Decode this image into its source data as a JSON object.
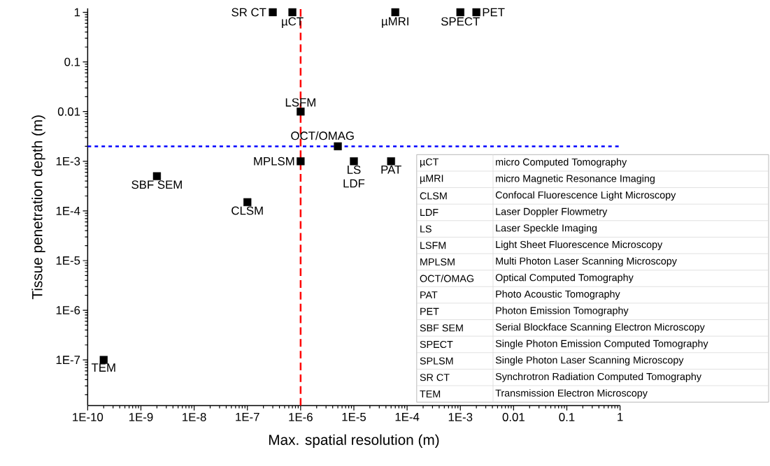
{
  "chart_data": {
    "type": "scatter",
    "xlabel": "Max. spatial resolution (m)",
    "ylabel": "Tissue penetration depth (m)",
    "log": "xy",
    "marker": "square",
    "xlim": [
      1e-10,
      1
    ],
    "ylim": [
      1.2e-08,
      1.2
    ],
    "xticks": [
      {
        "value": 1e-10,
        "label": "1E-10"
      },
      {
        "value": 1e-09,
        "label": "1E-9"
      },
      {
        "value": 1e-08,
        "label": "1E-8"
      },
      {
        "value": 1e-07,
        "label": "1E-7"
      },
      {
        "value": 1e-06,
        "label": "1E-6"
      },
      {
        "value": 1e-05,
        "label": "1E-5"
      },
      {
        "value": 0.0001,
        "label": "1E-4"
      },
      {
        "value": 0.001,
        "label": "1E-3"
      },
      0.01,
      0.1,
      1
    ],
    "yticks": [
      {
        "value": 1e-07,
        "label": "1E-7"
      },
      {
        "value": 1e-06,
        "label": "1E-6"
      },
      {
        "value": 1e-05,
        "label": "1E-5"
      },
      {
        "value": 0.0001,
        "label": "1E-4"
      },
      {
        "value": 0.001,
        "label": "1E-3"
      },
      0.01,
      0.1,
      1
    ],
    "series": [
      {
        "color": "#000000",
        "x": [
          3e-07,
          7e-07,
          6e-05,
          0.001,
          0.002,
          1e-06,
          5e-06,
          1e-06,
          1e-05,
          5e-05,
          2e-09,
          1e-07,
          2e-10
        ],
        "values": [
          1,
          1,
          1,
          1,
          1,
          0.01,
          0.002,
          0.001,
          0.001,
          0.001,
          0.0005,
          0.00015,
          1e-07
        ]
      }
    ],
    "ref_lines": [
      {
        "axis": "x",
        "value": 1e-06,
        "color": "#ff0000",
        "line_style": "dashed"
      },
      {
        "axis": "y",
        "value": 0.002,
        "color": "#0000ff",
        "line_style": "dotted"
      }
    ],
    "annotations": [
      {
        "text": "SR CT",
        "x": 3e-07,
        "y": 1
      },
      {
        "text": "µCT",
        "x": 7e-07,
        "y": 1
      },
      {
        "text": "µMRI",
        "x": 6e-05,
        "y": 1
      },
      {
        "text": "SPECT",
        "x": 0.001,
        "y": 1
      },
      {
        "text": "PET",
        "x": 0.002,
        "y": 1
      },
      {
        "text": "LSFM",
        "x": 1e-06,
        "y": 0.01
      },
      {
        "text": "OCT/OMAG",
        "x": 5e-06,
        "y": 0.002
      },
      {
        "text": "MPLSM",
        "x": 1e-06,
        "y": 0.001
      },
      {
        "text": "LS",
        "x": 1e-05,
        "y": 0.001
      },
      {
        "text": "LDF",
        "x": 1e-05,
        "y": 0.001
      },
      {
        "text": "PAT",
        "x": 5e-05,
        "y": 0.001
      },
      {
        "text": "SBF SEM",
        "x": 2e-09,
        "y": 0.0005
      },
      {
        "text": "CLSM",
        "x": 1e-07,
        "y": 0.00015
      },
      {
        "text": "TEM",
        "x": 2e-10,
        "y": 1e-07
      },
      "µCT",
      "micro Computed Tomography",
      "µMRI",
      "micro Magnetic Resonance Imaging",
      "CLSM",
      "Confocal Fluorescence Light Microscopy",
      "LDF",
      "Laser Doppler Flowmetry",
      "LS",
      "Laser Speckle Imaging",
      "LSFM",
      "Light Sheet Fluorescence Microscopy",
      "MPLSM",
      "Multi Photon Laser Scanning Microscopy",
      "OCT/OMAG",
      "Optical Computed Tomography",
      "PAT",
      "Photo Acoustic Tomography",
      "PET",
      "Photon Emission Tomography",
      "SBF SEM",
      "Serial Blockface Scanning Electron Microscopy",
      "SPECT",
      "Single Photon Emission Computed Tomography",
      "SPLSM",
      "Single Photon Laser Scanning Microscopy",
      "SR CT",
      "Synchrotron Radiation Computed Tomography",
      "TEM",
      "Transmission Electron Microscopy"
    ]
  }
}
